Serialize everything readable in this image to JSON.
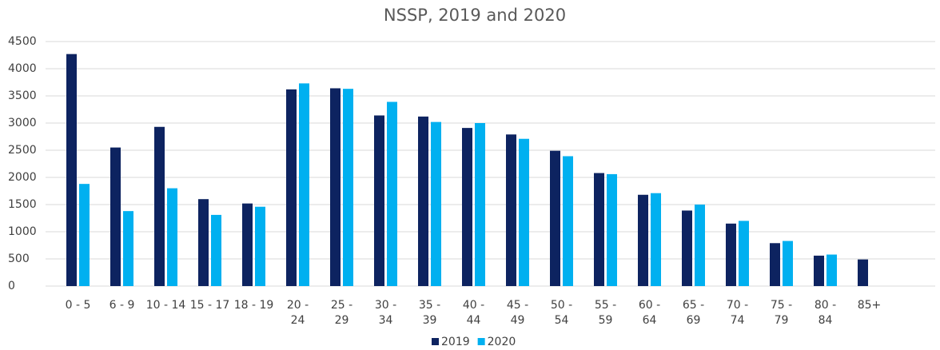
{
  "chart_data": {
    "type": "bar",
    "title": "NSSP, 2019 and 2020",
    "categories": [
      "0 - 5",
      "6 - 9",
      "10 - 14",
      "15 - 17",
      "18 - 19",
      "20 - 24",
      "25 - 29",
      "30 - 34",
      "35 - 39",
      "40 - 44",
      "45 - 49",
      "50 - 54",
      "55 - 59",
      "60 - 64",
      "65 - 69",
      "70 - 74",
      "75 - 79",
      "80 - 84",
      "85+",
      null
    ],
    "series": [
      {
        "name": "2019",
        "color": "#0d2360",
        "values": [
          4270,
          2550,
          2930,
          1600,
          1520,
          3620,
          3640,
          3140,
          3120,
          2910,
          2790,
          2490,
          2080,
          1680,
          1390,
          1150,
          790,
          560,
          490,
          null
        ]
      },
      {
        "name": "2020",
        "color": "#00b0f0",
        "values": [
          1880,
          1380,
          1800,
          1310,
          1460,
          3730,
          3630,
          3390,
          3020,
          3000,
          2710,
          2390,
          2060,
          1710,
          1500,
          1200,
          830,
          580,
          null,
          null
        ]
      }
    ],
    "ylim": [
      0,
      4500
    ],
    "yticks": [
      0,
      500,
      1000,
      1500,
      2000,
      2500,
      3000,
      3500,
      4000,
      4500
    ],
    "grid": true,
    "legend": "bottom"
  }
}
